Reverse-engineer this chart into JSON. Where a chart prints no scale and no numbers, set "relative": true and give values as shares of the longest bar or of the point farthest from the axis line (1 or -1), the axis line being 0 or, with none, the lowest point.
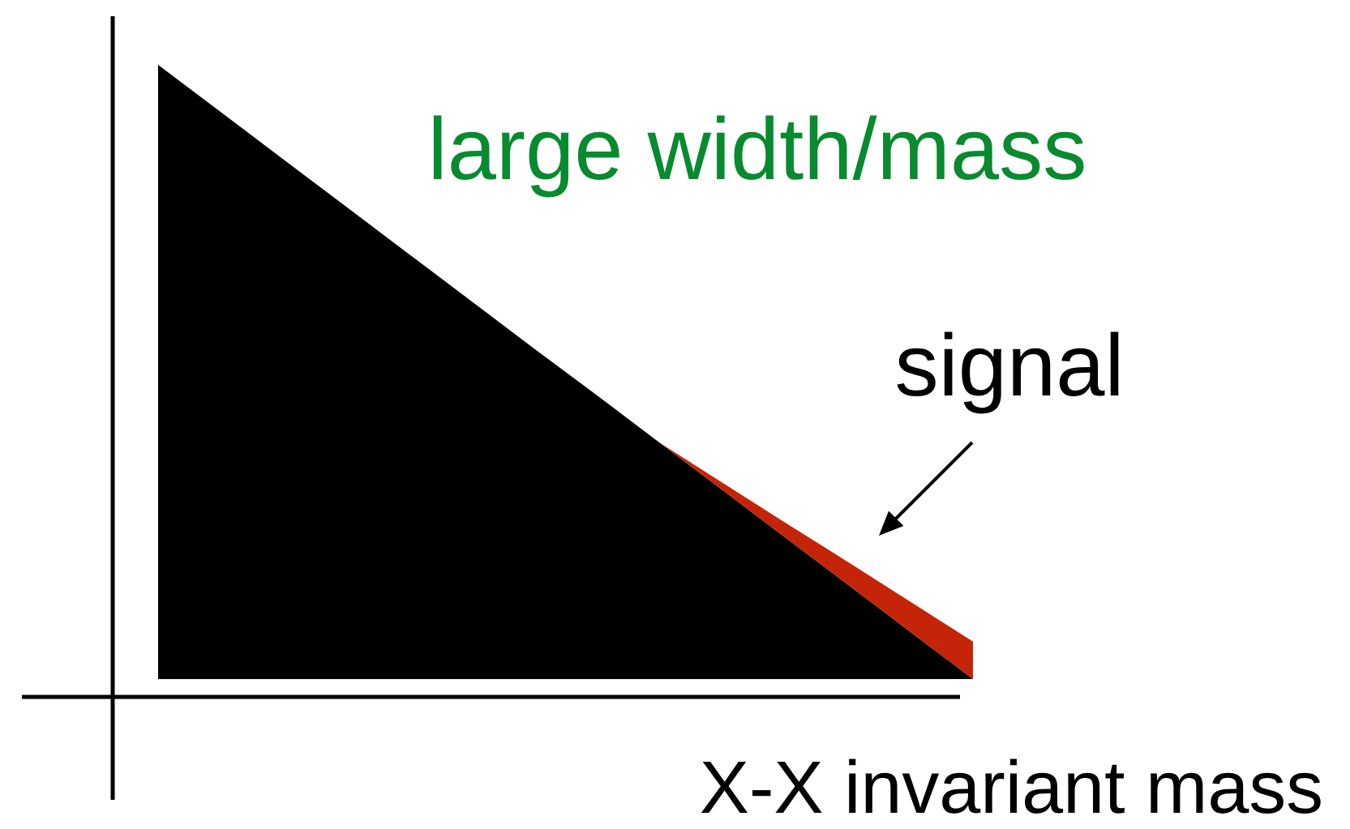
{
  "chart_data": {
    "type": "area",
    "relative": true,
    "stacked": true,
    "xlabel": "X-X invariant mass",
    "annotations": [
      "large width/mass",
      "signal"
    ],
    "categories": [
      null,
      null,
      null,
      null,
      null,
      null,
      null,
      null,
      null,
      null,
      null,
      null,
      null,
      null
    ],
    "series": [
      {
        "color": "#000000",
        "values": [
          1,
          0.923,
          0.846,
          0.769,
          0.692,
          0.615,
          0.538,
          0.462,
          0.385,
          0.308,
          0.231,
          0.154,
          0.077,
          0
        ]
      },
      {
        "color": "#c42408",
        "values": [
          null,
          null,
          null,
          null,
          null,
          null,
          null,
          null,
          0,
          0.012,
          0.024,
          0.037,
          0.049,
          0.061
        ]
      }
    ]
  }
}
